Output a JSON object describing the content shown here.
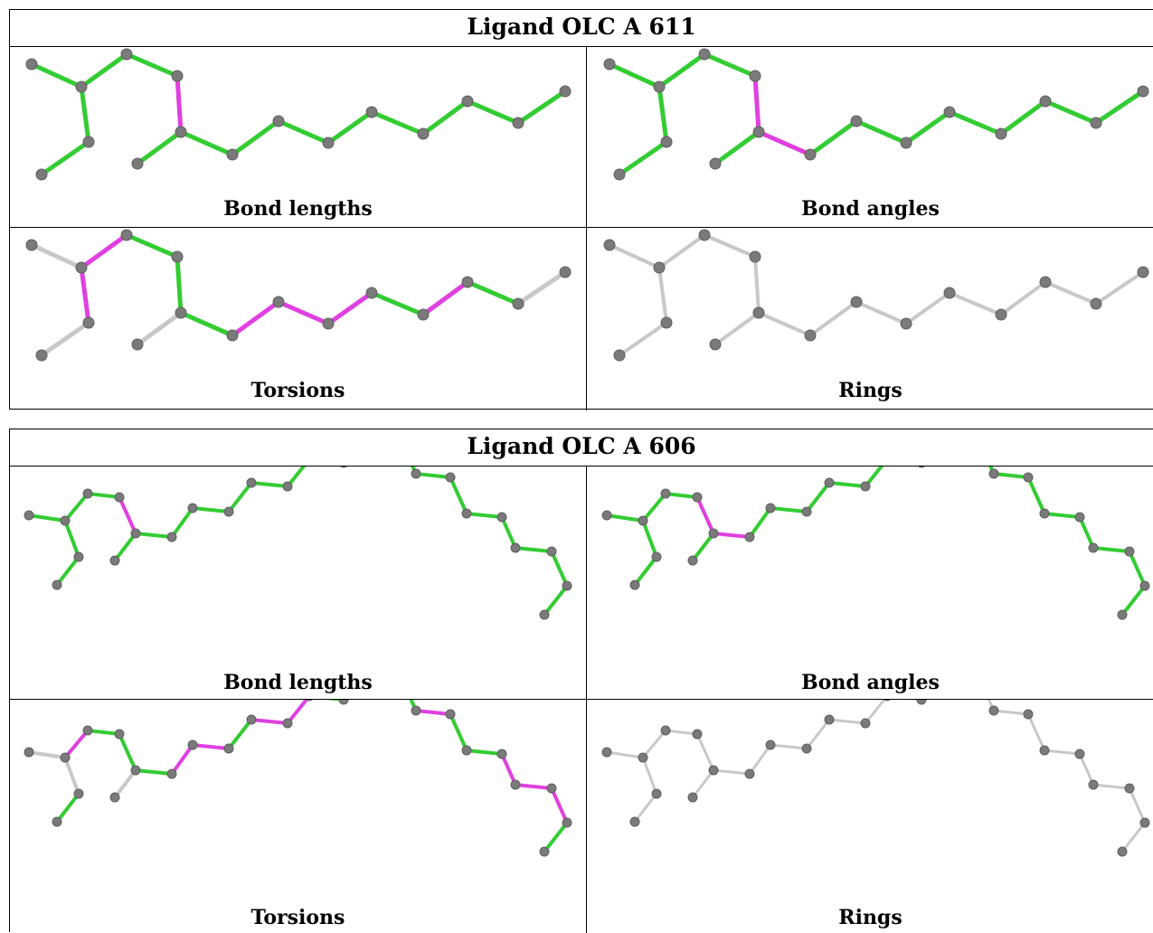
{
  "colors": {
    "bond_ok": "#33cc33",
    "bond_outlier": "#e040e0",
    "bond_neutral": "#c8c8c8",
    "atom": "#7a7a7a"
  },
  "blocks": [
    {
      "title": "Ligand OLC A 611",
      "captions": [
        "Bond lengths",
        "Bond angles",
        "Torsions",
        "Rings"
      ]
    },
    {
      "title": "Ligand OLC A 606",
      "captions": [
        "Bond lengths",
        "Bond angles",
        "Torsions",
        "Rings"
      ]
    }
  ]
}
